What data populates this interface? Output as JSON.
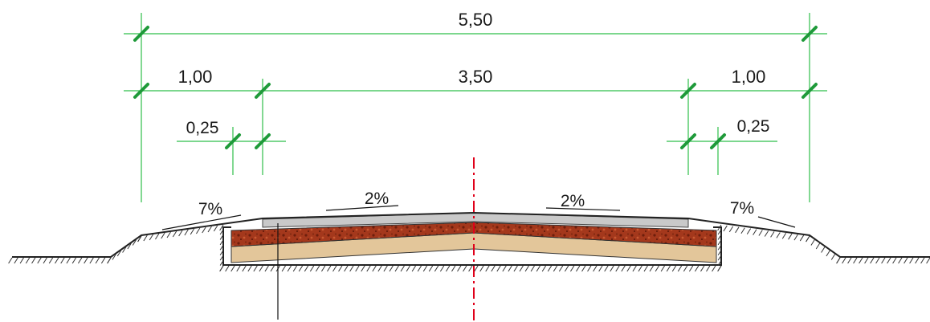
{
  "dimensions": {
    "overall_width": "5,50",
    "left_shoulder": "1,00",
    "carriageway": "3,50",
    "right_shoulder": "1,00",
    "left_edge_strip": "0,25",
    "right_edge_strip": "0,25"
  },
  "slopes": {
    "left_shoulder": "7%",
    "left_lane": "2%",
    "right_lane": "2%",
    "right_shoulder": "7%"
  },
  "colors": {
    "dimension_line": "#2fbf4a",
    "dimension_tick": "#1f9a3a",
    "axis_line": "#e0001a",
    "surface_layer": "#c9c9c9",
    "base_layer": "#a4381c",
    "subbase_layer": "#e3c69a"
  },
  "icons": {
    "ground_hatching": "terrain-hatch",
    "centerline": "dash-dot-axis"
  }
}
